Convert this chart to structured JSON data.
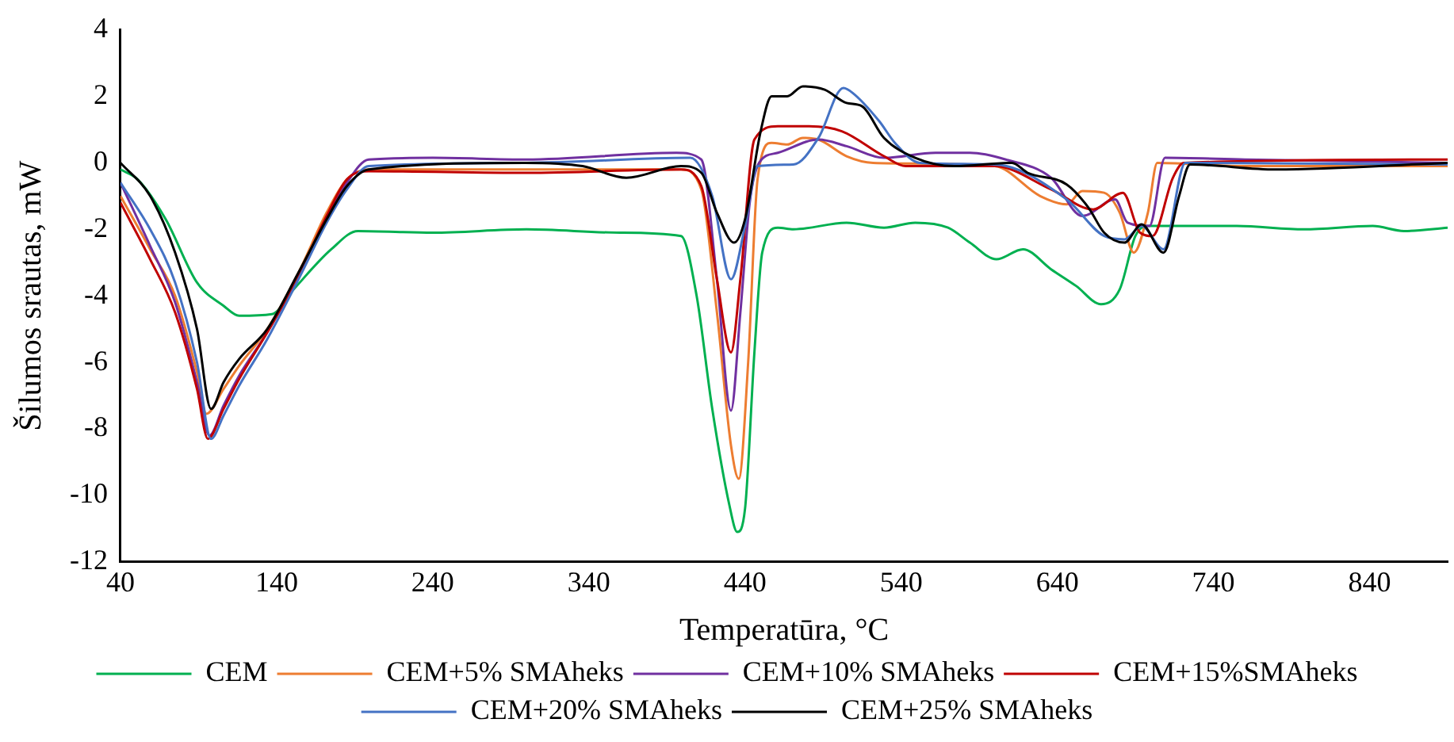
{
  "chart_data": {
    "type": "line",
    "xlabel": "Temperatūra, °C",
    "ylabel": "Šilumos srautas, mW",
    "xlim": [
      40,
      890
    ],
    "xticks": [
      40,
      140,
      240,
      340,
      440,
      540,
      640,
      740,
      840
    ],
    "ylim": [
      -12,
      4
    ],
    "yticks": [
      4,
      2,
      0,
      -2,
      -4,
      -6,
      -8,
      -10,
      -12
    ],
    "grid": false,
    "legend": "bottom",
    "marker": "none",
    "line_style": "solid",
    "series": [
      {
        "name": "CEM",
        "color": "#00b050",
        "x": [
          40,
          51,
          69,
          89,
          106,
          116,
          137,
          151,
          175,
          192,
          240,
          300,
          360,
          399,
          409,
          419,
          430,
          435,
          440,
          446,
          451,
          461,
          471,
          505,
          529,
          549,
          570,
          584,
          601,
          618,
          636,
          652,
          668,
          680,
          690,
          698,
          755,
          798,
          842,
          862,
          890
        ],
        "values": [
          -0.2,
          -0.5,
          -1.7,
          -3.6,
          -4.3,
          -4.6,
          -4.55,
          -3.8,
          -2.6,
          -2.05,
          -2.1,
          -2.0,
          -2.1,
          -2.2,
          -4.0,
          -7.4,
          -10.3,
          -11.1,
          -10.4,
          -5.7,
          -2.7,
          -1.95,
          -2.0,
          -1.8,
          -1.95,
          -1.8,
          -1.95,
          -2.4,
          -2.9,
          -2.6,
          -3.2,
          -3.7,
          -4.25,
          -3.8,
          -2.2,
          -1.9,
          -1.9,
          -2.0,
          -1.9,
          -2.05,
          -1.95
        ]
      },
      {
        "name": "CEM+5% SMAheks",
        "color": "#ed7d31",
        "x": [
          40,
          59,
          75,
          89,
          95,
          106,
          116,
          134,
          154,
          172,
          185,
          199,
          300,
          399,
          412,
          422,
          431,
          436,
          442,
          448,
          457,
          467,
          477,
          487,
          505,
          522,
          600,
          629,
          646,
          656,
          670,
          680,
          689,
          698,
          704,
          760,
          890
        ],
        "values": [
          -1.0,
          -2.6,
          -4.0,
          -6.3,
          -7.55,
          -6.8,
          -6.1,
          -5.0,
          -3.3,
          -1.5,
          -0.5,
          -0.2,
          -0.2,
          -0.2,
          -0.8,
          -4.5,
          -8.5,
          -9.5,
          -6.0,
          -0.5,
          0.6,
          0.55,
          0.75,
          0.7,
          0.2,
          0.0,
          -0.1,
          -1.0,
          -1.25,
          -0.85,
          -0.9,
          -1.5,
          -2.7,
          -1.5,
          0.0,
          -0.1,
          -0.1
        ]
      },
      {
        "name": "CEM+10% SMAheks",
        "color": "#7030a0",
        "x": [
          40,
          59,
          75,
          89,
          97,
          106,
          116,
          134,
          154,
          172,
          185,
          199,
          240,
          300,
          396,
          412,
          422,
          431,
          437,
          443,
          449,
          461,
          487,
          505,
          529,
          562,
          584,
          607,
          636,
          656,
          677,
          685,
          699,
          709,
          760,
          890
        ],
        "values": [
          -0.6,
          -2.5,
          -4.2,
          -6.6,
          -8.2,
          -7.3,
          -6.4,
          -5.1,
          -3.4,
          -1.7,
          -0.6,
          0.1,
          0.15,
          0.1,
          0.3,
          0.1,
          -3.5,
          -7.45,
          -4.5,
          -1.2,
          0.0,
          0.3,
          0.7,
          0.5,
          0.15,
          0.3,
          0.3,
          0.1,
          -0.45,
          -1.6,
          -1.1,
          -1.8,
          -1.9,
          0.15,
          0.1,
          0.0
        ]
      },
      {
        "name": "CEM+15%SMAheks",
        "color": "#c00000",
        "x": [
          40,
          59,
          75,
          89,
          96,
          106,
          116,
          134,
          154,
          172,
          185,
          199,
          300,
          399,
          412,
          422,
          431,
          437,
          446,
          461,
          481,
          502,
          529,
          543,
          600,
          636,
          663,
          682,
          693,
          701,
          714,
          721,
          890
        ],
        "values": [
          -1.2,
          -2.9,
          -4.5,
          -6.8,
          -8.3,
          -7.4,
          -6.5,
          -5.1,
          -3.4,
          -1.6,
          -0.5,
          -0.25,
          -0.3,
          -0.2,
          -0.7,
          -3.5,
          -5.7,
          -3.5,
          0.7,
          1.1,
          1.1,
          0.95,
          0.2,
          -0.1,
          -0.1,
          -0.8,
          -1.4,
          -0.9,
          -2.1,
          -2.2,
          -0.45,
          0.0,
          0.1
        ]
      },
      {
        "name": "CEM+20% SMAheks",
        "color": "#4472c4",
        "x": [
          40,
          59,
          75,
          89,
          98,
          106,
          116,
          134,
          154,
          172,
          185,
          199,
          300,
          405,
          419,
          431,
          440,
          448,
          471,
          487,
          503,
          509,
          526,
          536,
          552,
          600,
          646,
          670,
          683,
          694,
          708,
          722,
          890
        ],
        "values": [
          -0.6,
          -2.0,
          -3.6,
          -6.0,
          -8.3,
          -7.6,
          -6.7,
          -5.3,
          -3.5,
          -1.8,
          -0.8,
          -0.1,
          0.0,
          0.15,
          -1.0,
          -3.5,
          -1.9,
          -0.1,
          -0.05,
          0.75,
          2.25,
          2.1,
          1.25,
          0.6,
          0.0,
          -0.05,
          -1.1,
          -2.2,
          -2.3,
          -1.9,
          -2.6,
          0.0,
          -0.05
        ]
      },
      {
        "name": "CEM+25% SMAheks",
        "color": "#000000",
        "x": [
          40,
          59,
          75,
          89,
          98,
          106,
          116,
          134,
          154,
          172,
          185,
          199,
          299,
          336,
          364,
          399,
          412,
          422,
          433,
          440,
          450,
          457,
          467,
          477,
          491,
          505,
          515,
          529,
          549,
          574,
          611,
          621,
          646,
          660,
          670,
          683,
          694,
          708,
          718,
          725,
          780,
          890
        ],
        "values": [
          0.0,
          -1.0,
          -2.7,
          -5.0,
          -7.4,
          -6.6,
          -5.9,
          -5.0,
          -3.3,
          -1.7,
          -0.7,
          -0.2,
          0.0,
          -0.1,
          -0.45,
          -0.1,
          -0.3,
          -1.5,
          -2.4,
          -1.7,
          0.95,
          2.0,
          2.0,
          2.3,
          2.2,
          1.8,
          1.7,
          0.75,
          0.15,
          -0.1,
          0.0,
          -0.3,
          -0.65,
          -1.35,
          -2.1,
          -2.4,
          -1.85,
          -2.7,
          -1.0,
          -0.05,
          -0.2,
          0.0
        ]
      }
    ]
  }
}
